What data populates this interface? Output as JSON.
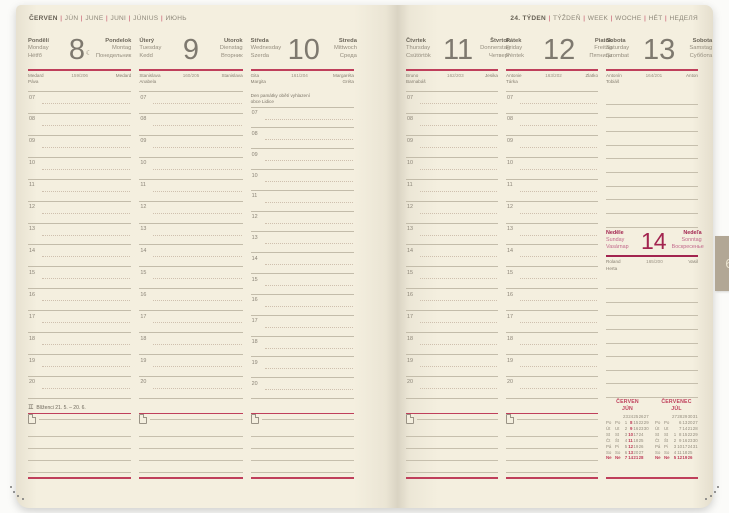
{
  "month_tab": "6",
  "accent_red": "#bf3f5b",
  "sunday_color": "#a2244f",
  "hours": [
    "07",
    "08",
    "09",
    "10",
    "11",
    "12",
    "13",
    "14",
    "15",
    "16",
    "17",
    "18",
    "19",
    "20"
  ],
  "left_page": {
    "title_parts": [
      "ČERVEN",
      "JÚN",
      "JUNE",
      "JUNI",
      "JÚNIUS",
      "ИЮНЬ"
    ],
    "zodiac_symbol": "♊",
    "zodiac_label": "Blíženci 21. 5. – 20. 6.",
    "days": [
      {
        "cz": "Pondělí",
        "en": "Monday",
        "hu": "Hétfő",
        "date": "8",
        "moon": "☾",
        "sk": "Pondelok",
        "de": "Montag",
        "ru": "Понедельник",
        "nameday1": "Medard",
        "nameday2": "Páva",
        "day_counter": "159/206",
        "nameday3": "Medard"
      },
      {
        "cz": "Úterý",
        "en": "Tuesday",
        "hu": "Kedd",
        "date": "9",
        "sk": "Utorok",
        "de": "Dienstag",
        "ru": "Вторник",
        "nameday1": "Stanislava",
        "nameday2": "Anabela",
        "day_counter": "160/205",
        "nameday3": "Stanislava"
      },
      {
        "cz": "Středa",
        "en": "Wednesday",
        "hu": "Szerda",
        "date": "10",
        "sk": "Streda",
        "de": "Mittwoch",
        "ru": "Среда",
        "nameday1": "Gita",
        "nameday2": "Margita",
        "day_counter": "161/204",
        "nameday3": "Margaréta",
        "nameday4": "Gréta",
        "note": "Den památky obětí vyhlazení obce Lidice"
      }
    ]
  },
  "right_page": {
    "title_parts": [
      "24. TÝDEN",
      "TÝŽDEŇ",
      "WEEK",
      "WOCHE",
      "HÉT",
      "НЕДЕЛЯ"
    ],
    "days": [
      {
        "cz": "Čtvrtek",
        "en": "Thursday",
        "hu": "Csütörtök",
        "date": "11",
        "sk": "Štvrtok",
        "de": "Donnerstag",
        "ru": "Четверг",
        "nameday1": "Bruno",
        "nameday2": "Barnabáš",
        "day_counter": "162/203",
        "nameday3": "Jesika"
      },
      {
        "cz": "Pátek",
        "en": "Friday",
        "hu": "Péntek",
        "date": "12",
        "sk": "Piatok",
        "de": "Freitag",
        "ru": "Пятница",
        "nameday1": "Antonie",
        "nameday2": "Tárka",
        "day_counter": "163/202",
        "nameday3": "Zlatko"
      },
      {
        "cz": "Sobota",
        "en": "Saturday",
        "hu": "Szombat",
        "date": "13",
        "sk": "Sobota",
        "de": "Samstag",
        "ru": "Суббота",
        "nameday1": "Antonín",
        "nameday2": "Tobiáš",
        "day_counter": "164/201",
        "nameday3": "Anton"
      }
    ],
    "sunday": {
      "cz": "Neděle",
      "en": "Sunday",
      "hu": "Vasárnap",
      "date": "14",
      "sk": "Nedeľa",
      "de": "Sonntag",
      "ru": "Воскресенье",
      "nameday1": "Roland",
      "nameday2": "Herta",
      "day_counter": "165/200",
      "nameday3": "Vasil"
    }
  },
  "mini_calendars": [
    {
      "month_cz": "ČERVEN",
      "month_sk": "JÚN",
      "week_nums": [
        "23",
        "24",
        "25",
        "26",
        "27"
      ],
      "highlight_col": 1,
      "rows": [
        {
          "cz": "Po",
          "sk": "Po",
          "nums": [
            "1",
            "8",
            "15",
            "22",
            "29"
          ]
        },
        {
          "cz": "Út",
          "sk": "Ut",
          "nums": [
            "2",
            "9",
            "16",
            "23",
            "30"
          ]
        },
        {
          "cz": "St",
          "sk": "St",
          "nums": [
            "3",
            "10",
            "17",
            "24",
            ""
          ]
        },
        {
          "cz": "Čt",
          "sk": "Št",
          "nums": [
            "4",
            "11",
            "18",
            "25",
            ""
          ]
        },
        {
          "cz": "Pá",
          "sk": "Pi",
          "nums": [
            "5",
            "12",
            "19",
            "26",
            ""
          ]
        },
        {
          "cz": "So",
          "sk": "So",
          "nums": [
            "6",
            "13",
            "20",
            "27",
            ""
          ]
        },
        {
          "cz": "Ne",
          "sk": "Ne",
          "nums": [
            "7",
            "14",
            "21",
            "28",
            ""
          ]
        }
      ]
    },
    {
      "month_cz": "ČERVENEC",
      "month_sk": "JÚL",
      "week_nums": [
        "27",
        "28",
        "29",
        "30",
        "31"
      ],
      "highlight_col": -1,
      "rows": [
        {
          "cz": "Po",
          "sk": "Po",
          "nums": [
            "",
            "6",
            "13",
            "20",
            "27"
          ]
        },
        {
          "cz": "Út",
          "sk": "Ut",
          "nums": [
            "",
            "7",
            "14",
            "21",
            "28"
          ]
        },
        {
          "cz": "St",
          "sk": "St",
          "nums": [
            "1",
            "8",
            "15",
            "22",
            "29"
          ]
        },
        {
          "cz": "Čt",
          "sk": "Št",
          "nums": [
            "2",
            "9",
            "16",
            "23",
            "30"
          ]
        },
        {
          "cz": "Pá",
          "sk": "Pi",
          "nums": [
            "3",
            "10",
            "17",
            "24",
            "31"
          ]
        },
        {
          "cz": "So",
          "sk": "So",
          "nums": [
            "4",
            "11",
            "18",
            "25",
            ""
          ]
        },
        {
          "cz": "Ne",
          "sk": "Ne",
          "nums": [
            "5",
            "12",
            "19",
            "26",
            ""
          ]
        }
      ]
    }
  ]
}
